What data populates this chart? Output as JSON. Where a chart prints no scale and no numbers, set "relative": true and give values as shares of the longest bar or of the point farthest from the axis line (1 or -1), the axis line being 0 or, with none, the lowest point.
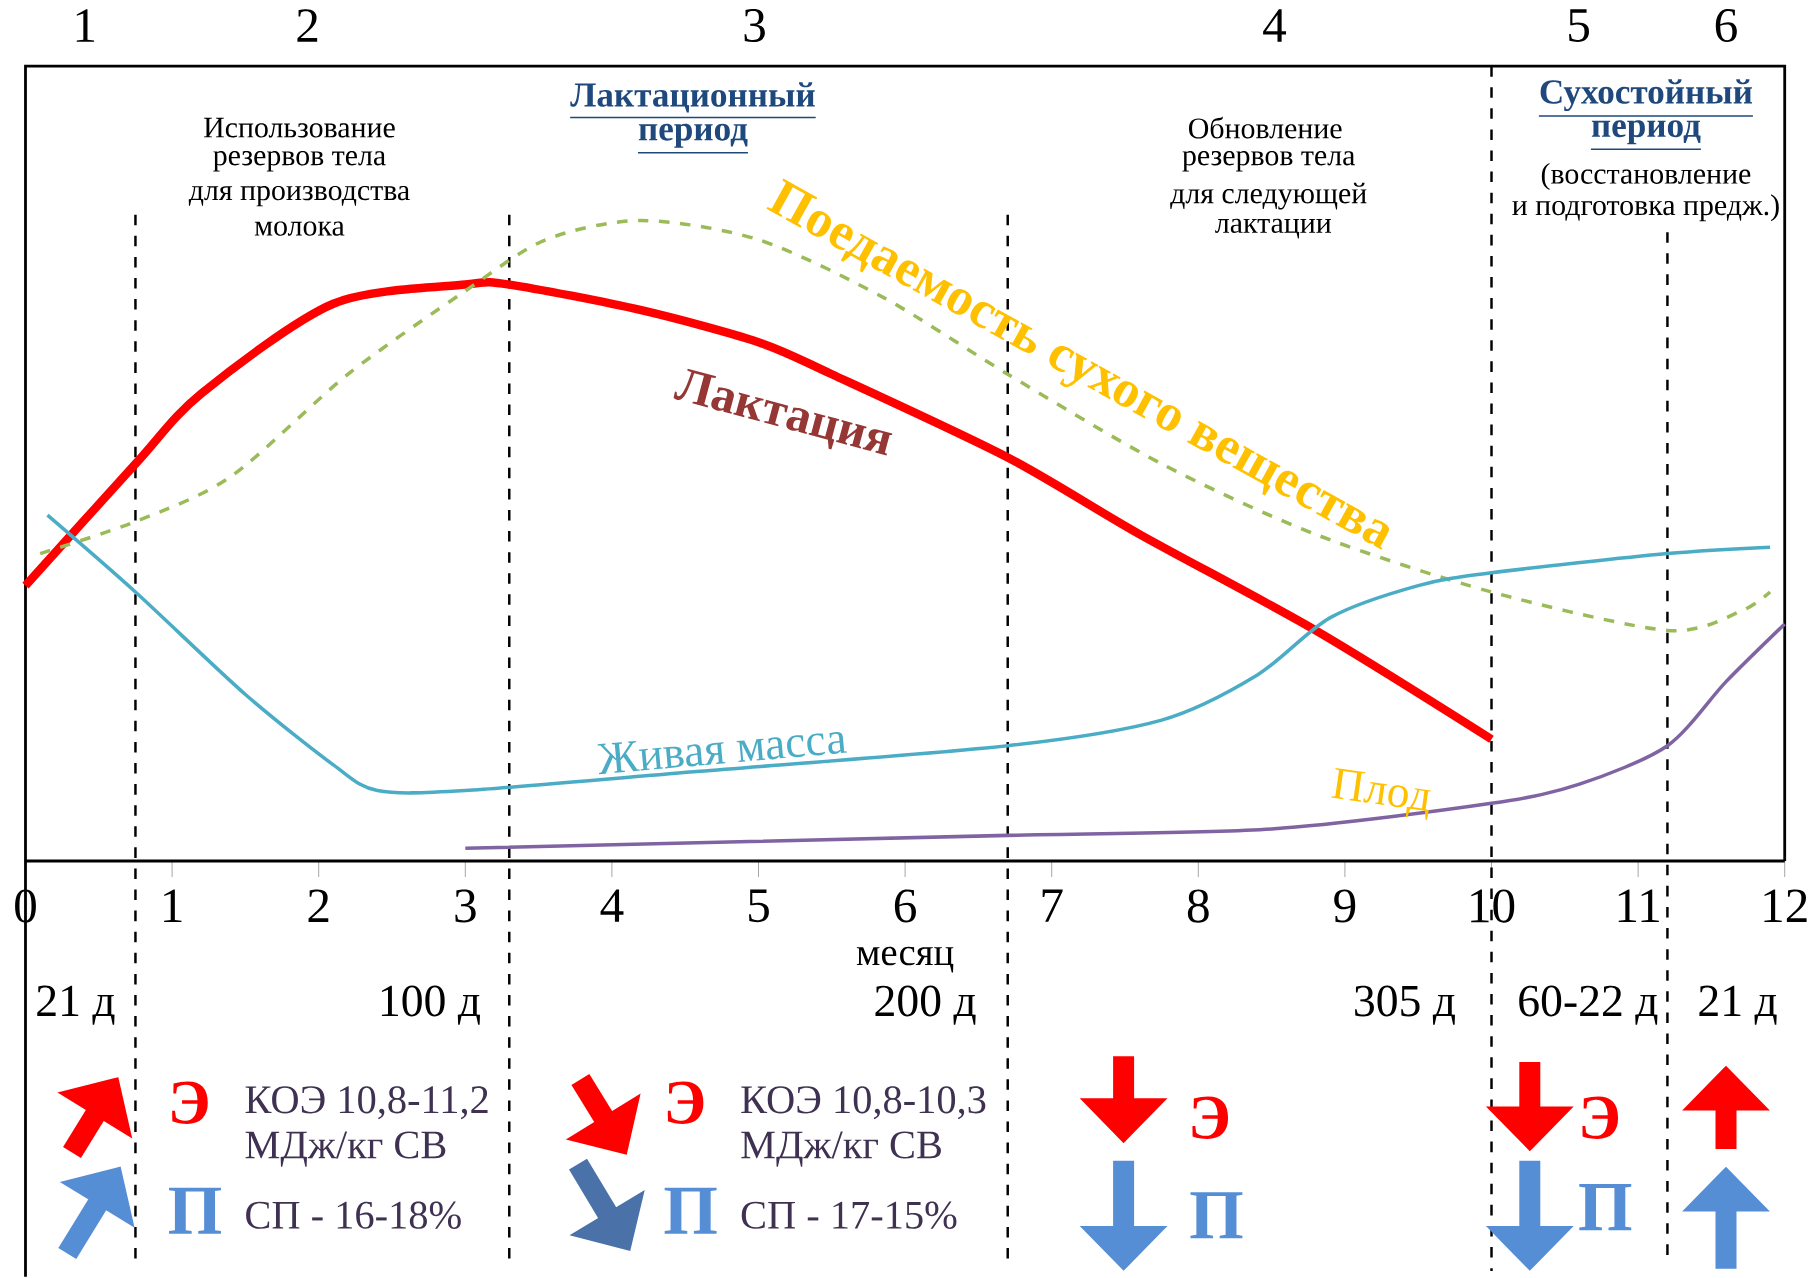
{
  "chart_data": {
    "type": "line",
    "relative": true,
    "xlabel": "месяц",
    "xlim": [
      0,
      12
    ],
    "xticks": [
      0,
      1,
      2,
      3,
      4,
      5,
      6,
      7,
      8,
      9,
      10,
      11,
      12
    ],
    "series": [
      {
        "name": "Лактация",
        "color": "#ff0000",
        "x": [
          0,
          0.75,
          1.2,
          2.1,
          3.0,
          3.3,
          4.2,
          5.0,
          5.5,
          6.7,
          7.6,
          8.8,
          10
        ],
        "values": [
          0.43,
          0.62,
          0.73,
          0.87,
          0.9,
          0.9,
          0.86,
          0.81,
          0.76,
          0.63,
          0.51,
          0.36,
          0.19
        ]
      },
      {
        "name": "Поедаемость сухого вещества",
        "color": "#9bbb59",
        "line_style": "dashed",
        "x": [
          0.1,
          0.75,
          1.4,
          2.2,
          3.0,
          3.55,
          4.2,
          5.0,
          5.85,
          6.7,
          7.75,
          8.8,
          10,
          11.2,
          11.7,
          11.9
        ],
        "values": [
          0.48,
          0.53,
          0.6,
          0.76,
          0.89,
          0.97,
          1.0,
          0.97,
          0.88,
          0.76,
          0.62,
          0.51,
          0.42,
          0.36,
          0.39,
          0.42
        ]
      },
      {
        "name": "Живая масса",
        "color": "#4bacc6",
        "x": [
          0.15,
          0.75,
          1.5,
          2.1,
          2.4,
          3.0,
          4.6,
          6.7,
          7.75,
          8.4,
          8.9,
          9.5,
          10,
          11.2,
          11.9
        ],
        "values": [
          0.54,
          0.42,
          0.26,
          0.15,
          0.11,
          0.11,
          0.14,
          0.18,
          0.22,
          0.29,
          0.38,
          0.43,
          0.45,
          0.48,
          0.49
        ]
      },
      {
        "name": "Плод",
        "color": "#8064a2",
        "x": [
          3.0,
          6.7,
          8.5,
          10,
          10.6,
          11.2,
          11.6,
          12
        ],
        "values": [
          0.02,
          0.04,
          0.05,
          0.09,
          0.12,
          0.18,
          0.28,
          0.37
        ]
      }
    ],
    "ref_lines": [
      {
        "axis": "x",
        "value": 0.75,
        "line_style": "dashed"
      },
      {
        "axis": "x",
        "value": 3.3,
        "line_style": "dashed"
      },
      {
        "axis": "x",
        "value": 6.7,
        "line_style": "dashed"
      },
      {
        "axis": "x",
        "value": 10,
        "line_style": "dashed"
      },
      {
        "axis": "x",
        "value": 11.2,
        "line_style": "dashed"
      }
    ],
    "annotations": [
      "1",
      "2",
      "3",
      "4",
      "5",
      "6",
      "Использование",
      "резервов тела",
      "для производства",
      "молока",
      "Лактационный",
      "период",
      "Обновление",
      "резервов тела",
      "для следующей",
      "лактации",
      "Сухостойный",
      "период",
      "(восстановление",
      "и подготовка предж.)",
      "21 д",
      "100 д",
      "200 д",
      "305 д",
      "60-22 д",
      "21 д",
      "Э",
      "КОЭ 10,8-11,2",
      "МДж/кг СВ",
      "П",
      "СП - 16-18%",
      "Э",
      "КОЭ 10,8-10,3",
      "МДж/кг СВ",
      "П",
      "СП - 17-15%",
      "Э",
      "П",
      "Э",
      "П"
    ]
  }
}
